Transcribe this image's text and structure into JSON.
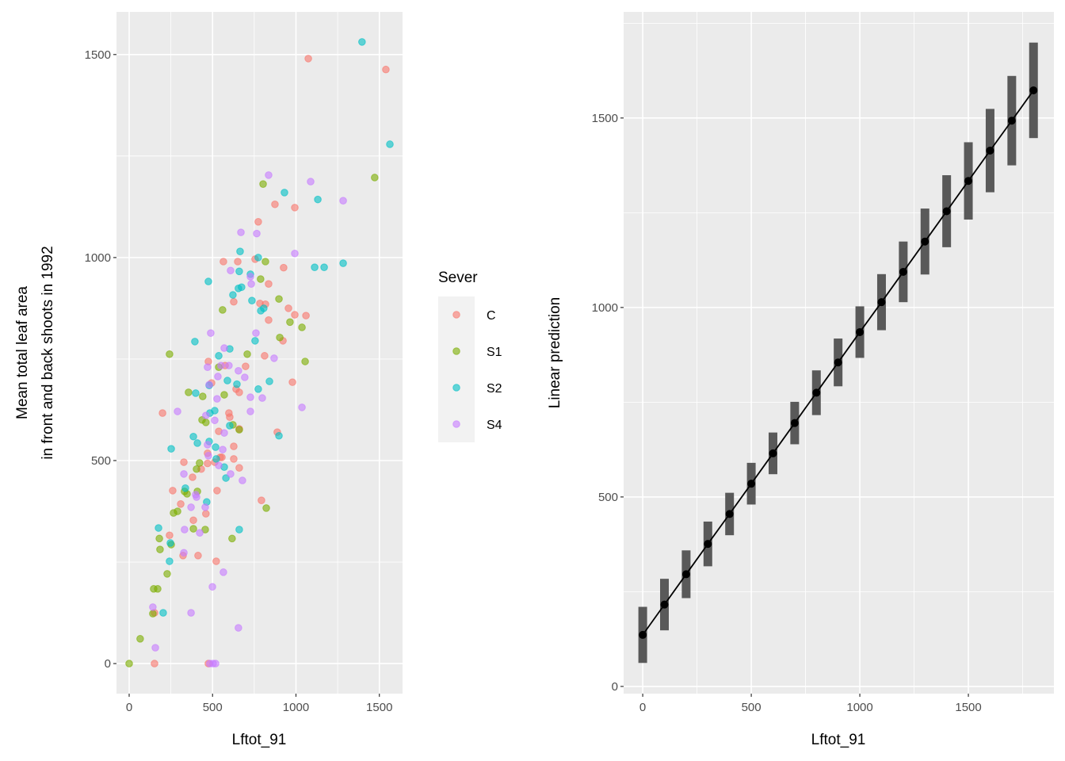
{
  "chart_data": [
    {
      "type": "scatter",
      "xlabel": "Lftot_91",
      "ylabel_lines": [
        "Mean total leaf area",
        "in front and back shoots in 1992"
      ],
      "xlim": [
        -76,
        1639
      ],
      "ylim": [
        -74,
        1605
      ],
      "xticks": [
        0,
        500,
        1000,
        1500
      ],
      "yticks": [
        0,
        500,
        1000,
        1500
      ],
      "grid": true,
      "legend": {
        "title": "Sever",
        "placement": "right"
      },
      "series": [
        {
          "name": "C",
          "color": "#F8766D",
          "points": [
            [
              1074,
              1490
            ],
            [
              1539,
              1463
            ],
            [
              993,
              1123
            ],
            [
              874,
              1131
            ],
            [
              774,
              1088
            ],
            [
              565,
              990
            ],
            [
              651,
              990
            ],
            [
              755,
              996
            ],
            [
              926,
              975
            ],
            [
              836,
              935
            ],
            [
              627,
              891
            ],
            [
              784,
              887
            ],
            [
              817,
              885
            ],
            [
              955,
              875
            ],
            [
              1060,
              857
            ],
            [
              993,
              859
            ],
            [
              836,
              846
            ],
            [
              922,
              795
            ],
            [
              812,
              758
            ],
            [
              979,
              693
            ],
            [
              475,
              744
            ],
            [
              575,
              734
            ],
            [
              698,
              732
            ],
            [
              641,
              676
            ],
            [
              660,
              668
            ],
            [
              888,
              570
            ],
            [
              200,
              617
            ],
            [
              598,
              617
            ],
            [
              603,
              607
            ],
            [
              494,
              691
            ],
            [
              537,
              572
            ],
            [
              660,
              578
            ],
            [
              627,
              535
            ],
            [
              627,
              504
            ],
            [
              546,
              508
            ],
            [
              556,
              508
            ],
            [
              470,
              518
            ],
            [
              513,
              496
            ],
            [
              470,
              493
            ],
            [
              432,
              479
            ],
            [
              660,
              482
            ],
            [
              793,
              402
            ],
            [
              527,
              426
            ],
            [
              261,
              426
            ],
            [
              380,
              459
            ],
            [
              328,
              496
            ],
            [
              460,
              369
            ],
            [
              309,
              393
            ],
            [
              242,
              316
            ],
            [
              413,
              266
            ],
            [
              323,
              266
            ],
            [
              522,
              252
            ],
            [
              152,
              125
            ],
            [
              152,
              0
            ],
            [
              475,
              0
            ],
            [
              385,
              353
            ]
          ]
        },
        {
          "name": "S1",
          "color": "#7CAE00",
          "points": [
            [
              1472,
              1197
            ],
            [
              803,
              1181
            ],
            [
              817,
              990
            ],
            [
              788,
              947
            ],
            [
              898,
              898
            ],
            [
              964,
              841
            ],
            [
              1036,
              828
            ],
            [
              903,
              803
            ],
            [
              1055,
              744
            ],
            [
              242,
              762
            ],
            [
              560,
              871
            ],
            [
              708,
              762
            ],
            [
              537,
              730
            ],
            [
              356,
              668
            ],
            [
              441,
              658
            ],
            [
              570,
              662
            ],
            [
              622,
              588
            ],
            [
              660,
              576
            ],
            [
              437,
              600
            ],
            [
              460,
              594
            ],
            [
              422,
              494
            ],
            [
              404,
              479
            ],
            [
              409,
              424
            ],
            [
              347,
              418
            ],
            [
              290,
              375
            ],
            [
              266,
              371
            ],
            [
              332,
              424
            ],
            [
              385,
              332
            ],
            [
              456,
              330
            ],
            [
              617,
              308
            ],
            [
              822,
              383
            ],
            [
              181,
              308
            ],
            [
              185,
              281
            ],
            [
              252,
              293
            ],
            [
              228,
              221
            ],
            [
              147,
              184
            ],
            [
              171,
              184
            ],
            [
              142,
              123
            ],
            [
              66,
              61
            ],
            [
              0,
              0
            ]
          ]
        },
        {
          "name": "S2",
          "color": "#00BFC4",
          "points": [
            [
              1396,
              1531
            ],
            [
              1563,
              1279
            ],
            [
              931,
              1160
            ],
            [
              1131,
              1143
            ],
            [
              1112,
              976
            ],
            [
              1169,
              976
            ],
            [
              1283,
              986
            ],
            [
              475,
              941
            ],
            [
              665,
              1015
            ],
            [
              660,
              966
            ],
            [
              727,
              959
            ],
            [
              774,
              1000
            ],
            [
              807,
              875
            ],
            [
              736,
              894
            ],
            [
              789,
              869
            ],
            [
              655,
              924
            ],
            [
              674,
              927
            ],
            [
              622,
              908
            ],
            [
              394,
              793
            ],
            [
              755,
              795
            ],
            [
              603,
              775
            ],
            [
              537,
              758
            ],
            [
              589,
              697
            ],
            [
              646,
              688
            ],
            [
              774,
              676
            ],
            [
              841,
              695
            ],
            [
              480,
              685
            ],
            [
              399,
              666
            ],
            [
              513,
              623
            ],
            [
              484,
              617
            ],
            [
              385,
              559
            ],
            [
              409,
              543
            ],
            [
              252,
              529
            ],
            [
              480,
              547
            ],
            [
              518,
              533
            ],
            [
              603,
              586
            ],
            [
              570,
              484
            ],
            [
              898,
              561
            ],
            [
              522,
              504
            ],
            [
              580,
              457
            ],
            [
              337,
              432
            ],
            [
              465,
              398
            ],
            [
              176,
              334
            ],
            [
              247,
              297
            ],
            [
              242,
              252
            ],
            [
              204,
              125
            ],
            [
              660,
              330
            ]
          ]
        },
        {
          "name": "S4",
          "color": "#C77CFF",
          "points": [
            [
              836,
              1203
            ],
            [
              1088,
              1187
            ],
            [
              1283,
              1140
            ],
            [
              670,
              1062
            ],
            [
              765,
              1059
            ],
            [
              993,
              1010
            ],
            [
              608,
              968
            ],
            [
              732,
              935
            ],
            [
              727,
              953
            ],
            [
              489,
              814
            ],
            [
              760,
              814
            ],
            [
              869,
              752
            ],
            [
              570,
              777
            ],
            [
              598,
              734
            ],
            [
              655,
              721
            ],
            [
              693,
              705
            ],
            [
              551,
              734
            ],
            [
              470,
              730
            ],
            [
              532,
              707
            ],
            [
              480,
              687
            ],
            [
              727,
              656
            ],
            [
              798,
              654
            ],
            [
              527,
              652
            ],
            [
              1036,
              631
            ],
            [
              727,
              621
            ],
            [
              290,
              621
            ],
            [
              460,
              611
            ],
            [
              513,
              599
            ],
            [
              570,
              568
            ],
            [
              470,
              539
            ],
            [
              475,
              512
            ],
            [
              561,
              527
            ],
            [
              537,
              488
            ],
            [
              679,
              451
            ],
            [
              608,
              467
            ],
            [
              328,
              467
            ],
            [
              399,
              416
            ],
            [
              404,
              410
            ],
            [
              371,
              385
            ],
            [
              456,
              385
            ],
            [
              332,
              330
            ],
            [
              423,
              322
            ],
            [
              328,
              273
            ],
            [
              499,
              189
            ],
            [
              565,
              225
            ],
            [
              371,
              125
            ],
            [
              655,
              88
            ],
            [
              142,
              139
            ],
            [
              157,
              39
            ],
            [
              484,
              0
            ],
            [
              503,
              0
            ],
            [
              518,
              0
            ]
          ]
        }
      ]
    },
    {
      "type": "line",
      "xlabel": "Lftot_91",
      "ylabel": "Linear prediction",
      "xlim": [
        -88,
        1894
      ],
      "ylim": [
        -19,
        1780
      ],
      "xticks": [
        0,
        500,
        1000,
        1500
      ],
      "yticks": [
        0,
        500,
        1000,
        1500
      ],
      "grid": true,
      "x": [
        0,
        100,
        200,
        300,
        400,
        500,
        600,
        700,
        800,
        900,
        1000,
        1100,
        1200,
        1300,
        1400,
        1500,
        1600,
        1700,
        1800
      ],
      "fit": [
        136,
        216,
        296,
        376,
        455,
        535,
        615,
        695,
        775,
        855,
        935,
        1014,
        1094,
        1174,
        1254,
        1334,
        1414,
        1493,
        1573
      ],
      "lower": [
        62,
        148,
        233,
        317,
        399,
        480,
        560,
        639,
        716,
        792,
        867,
        940,
        1014,
        1087,
        1159,
        1232,
        1304,
        1375,
        1447
      ],
      "upper": [
        210,
        284,
        359,
        435,
        511,
        590,
        670,
        751,
        834,
        918,
        1003,
        1088,
        1174,
        1261,
        1349,
        1436,
        1524,
        1611,
        1699
      ],
      "line_color": "#000000",
      "interval_color": "#595959"
    }
  ]
}
